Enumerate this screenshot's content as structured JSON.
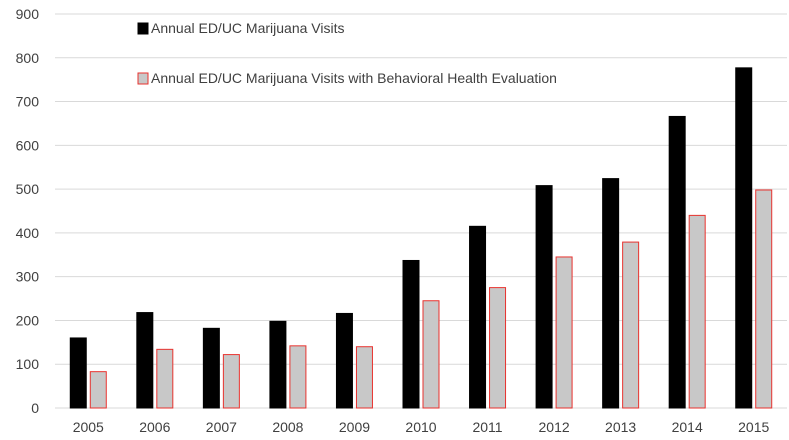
{
  "chart_data": {
    "type": "bar",
    "categories": [
      "2005",
      "2006",
      "2007",
      "2008",
      "2009",
      "2010",
      "2011",
      "2012",
      "2013",
      "2014",
      "2015"
    ],
    "series": [
      {
        "name": "Annual ED/UC Marijuana Visits",
        "values": [
          160,
          218,
          182,
          198,
          216,
          337,
          415,
          508,
          524,
          666,
          777
        ],
        "fill": "#000000",
        "stroke": "#000000"
      },
      {
        "name": "Annual ED/UC Marijuana Visits with Behavioral Health Evaluation",
        "values": [
          83,
          134,
          122,
          142,
          140,
          245,
          275,
          345,
          379,
          440,
          498
        ],
        "fill": "#c8c8c8",
        "stroke": "#e8322e"
      }
    ],
    "ylim": [
      0,
      900
    ],
    "yticks": [
      0,
      100,
      200,
      300,
      400,
      500,
      600,
      700,
      800,
      900
    ],
    "grid": true,
    "legend_position": "top-left"
  }
}
